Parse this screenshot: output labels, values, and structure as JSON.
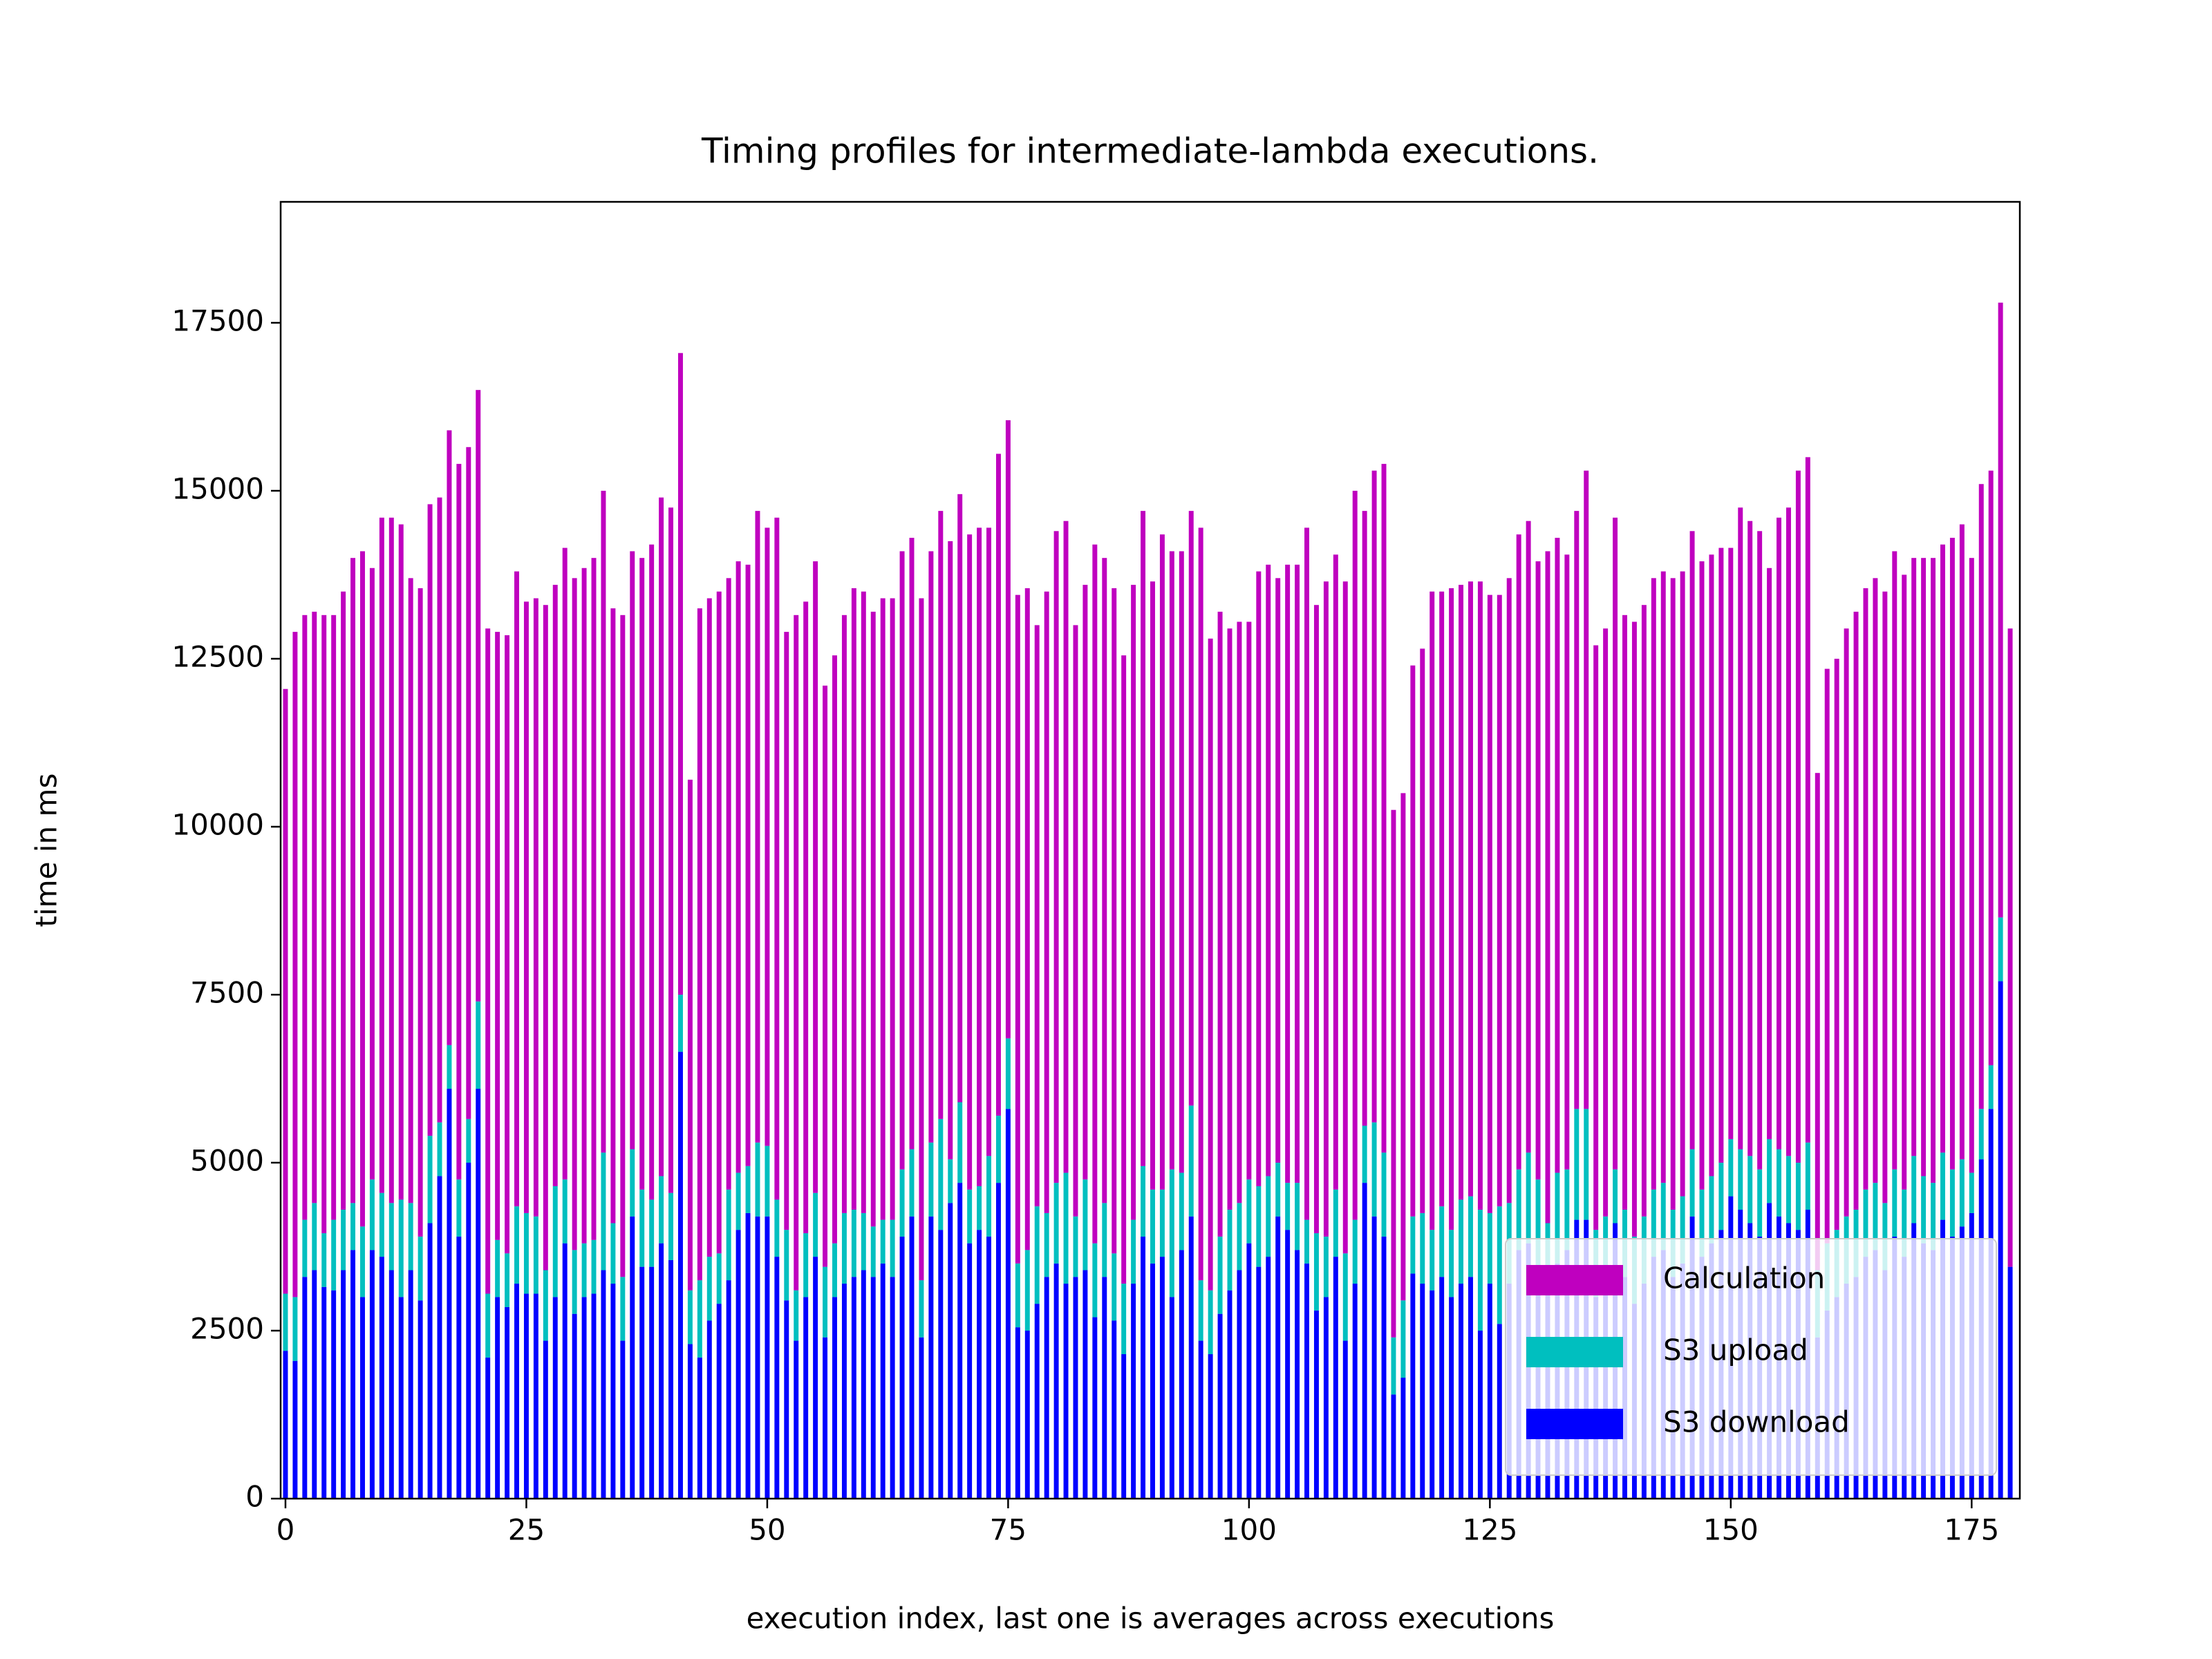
{
  "chart_data": {
    "type": "stacked_bar",
    "title": "Timing profiles for intermediate-lambda executions.",
    "x_label": "execution index, last one is averages across executions",
    "y_label": "time in ms",
    "xlim": [
      -0.5,
      180
    ],
    "ylim": [
      0,
      19300
    ],
    "xticks": [
      0,
      25,
      50,
      75,
      100,
      125,
      150,
      175
    ],
    "yticks": [
      0,
      2500,
      5000,
      7500,
      10000,
      12500,
      15000,
      17500
    ],
    "bar_width": 0.5,
    "grid": false,
    "legend_loc": "lower right",
    "legend_order": "reversed",
    "series": [
      {
        "name": "S3 download",
        "color": "#0000ff",
        "values": [
          2200,
          2050,
          3300,
          3400,
          3150,
          3100,
          3400,
          3700,
          3000,
          3700,
          3600,
          3400,
          3000,
          3400,
          2950,
          4100,
          4800,
          6100,
          3900,
          5000,
          6100,
          2100,
          3000,
          2850,
          3200,
          3050,
          3050,
          2350,
          3000,
          3800,
          2750,
          3000,
          3050,
          3400,
          3200,
          2350,
          4200,
          3450,
          3450,
          3800,
          3550,
          6650,
          2300,
          2100,
          2650,
          2900,
          3250,
          4000,
          4250,
          4200,
          4200,
          3600,
          2950,
          2350,
          3000,
          3600,
          2400,
          3000,
          3200,
          3300,
          3400,
          3300,
          3500,
          3300,
          3900,
          4200,
          2400,
          4200,
          4000,
          4400,
          4700,
          3800,
          4000,
          3900,
          4700,
          5800,
          2550,
          2500,
          2900,
          3300,
          3500,
          3200,
          3300,
          3400,
          2700,
          3300,
          2650,
          2150,
          3200,
          3900,
          3500,
          3600,
          3000,
          3700,
          4200,
          2350,
          2150,
          2750,
          3100,
          3400,
          3800,
          3450,
          3600,
          4200,
          4000,
          3700,
          3500,
          2800,
          3000,
          3600,
          2350,
          3200,
          4700,
          4200,
          3900,
          1550,
          1800,
          3350,
          3200,
          3100,
          3300,
          3000,
          3200,
          3300,
          2500,
          3200,
          2600,
          3200,
          3700,
          3800,
          3300,
          3100,
          3500,
          3700,
          4150,
          4150,
          3000,
          3200,
          4100,
          3300,
          2900,
          3200,
          3600,
          3700,
          3300,
          3500,
          4200,
          3600,
          3800,
          4000,
          4500,
          4300,
          4100,
          3900,
          4400,
          4200,
          4100,
          4000,
          4300,
          2400,
          2800,
          3000,
          3200,
          3300,
          3600,
          3700,
          3400,
          3900,
          3600,
          4100,
          3800,
          3700,
          4150,
          3900,
          4050,
          4250,
          5050,
          5800,
          7700,
          3450
        ]
      },
      {
        "name": "S3 upload",
        "color": "#00bfbf",
        "values": [
          850,
          950,
          850,
          1000,
          800,
          1050,
          900,
          700,
          1050,
          1050,
          950,
          1000,
          1450,
          1000,
          950,
          1300,
          800,
          650,
          850,
          650,
          1300,
          950,
          850,
          800,
          1150,
          1200,
          1150,
          1050,
          1650,
          950,
          950,
          800,
          800,
          1750,
          900,
          950,
          1000,
          1150,
          1000,
          1000,
          1000,
          850,
          800,
          1150,
          950,
          750,
          1350,
          850,
          700,
          1100,
          1050,
          850,
          1050,
          750,
          950,
          950,
          1050,
          800,
          1050,
          1000,
          850,
          750,
          650,
          850,
          1000,
          1000,
          850,
          1100,
          1650,
          650,
          1200,
          800,
          650,
          1200,
          1000,
          1050,
          950,
          1200,
          1450,
          950,
          1200,
          1650,
          900,
          1350,
          1100,
          1100,
          1000,
          1050,
          950,
          1050,
          1100,
          1000,
          1900,
          1150,
          1650,
          900,
          950,
          1150,
          1200,
          1000,
          950,
          1200,
          1200,
          800,
          700,
          1000,
          650,
          1150,
          900,
          1000,
          1300,
          950,
          850,
          1400,
          1250,
          850,
          1150,
          850,
          1050,
          900,
          1050,
          1000,
          1250,
          1200,
          1800,
          1050,
          1750,
          1200,
          1200,
          1350,
          1450,
          1000,
          1350,
          1200,
          1650,
          1650,
          1000,
          1000,
          800,
          1000,
          1000,
          1000,
          1000,
          1000,
          1000,
          1000,
          1000,
          1000,
          1000,
          1000,
          850,
          900,
          1000,
          1000,
          950,
          1000,
          1000,
          1000,
          1000,
          1000,
          1000,
          1000,
          1000,
          1000,
          1000,
          1000,
          1000,
          1000,
          1000,
          1000,
          1000,
          1000,
          1000,
          1000,
          1000,
          600,
          750,
          650,
          950
        ]
      },
      {
        "name": "Calculation",
        "color": "#bf00bf",
        "values": [
          9000,
          9900,
          9000,
          8800,
          9200,
          9000,
          9200,
          9600,
          10050,
          9100,
          10050,
          10200,
          10050,
          9300,
          9650,
          9400,
          9300,
          9150,
          10650,
          10000,
          9100,
          9900,
          9050,
          9200,
          9450,
          9100,
          9200,
          9900,
          8950,
          9400,
          10000,
          10050,
          10150,
          9850,
          9150,
          9850,
          8900,
          9400,
          9750,
          10100,
          10200,
          9550,
          7600,
          10000,
          9800,
          9850,
          9100,
          9100,
          8950,
          9400,
          9200,
          10150,
          8900,
          10050,
          9400,
          9400,
          8650,
          8750,
          8900,
          9250,
          9250,
          9150,
          9250,
          9250,
          9200,
          9100,
          10150,
          8800,
          9050,
          9200,
          9050,
          9750,
          9800,
          9350,
          9850,
          9200,
          9950,
          9850,
          8650,
          9250,
          9700,
          9700,
          8800,
          8850,
          10400,
          9600,
          9900,
          9350,
          9450,
          9750,
          9050,
          9750,
          9200,
          9250,
          8850,
          11200,
          9700,
          9300,
          8650,
          8650,
          8300,
          9150,
          9100,
          8700,
          9200,
          9200,
          10300,
          9350,
          9750,
          9450,
          10000,
          10850,
          9150,
          9700,
          10250,
          7850,
          7550,
          8200,
          8400,
          9500,
          9150,
          9550,
          9150,
          9150,
          9350,
          9200,
          9100,
          9300,
          9450,
          9400,
          9200,
          10000,
          9450,
          9150,
          8900,
          9500,
          8700,
          8750,
          9700,
          8850,
          9150,
          9100,
          9100,
          9100,
          9400,
          9300,
          9200,
          9350,
          9250,
          9150,
          8800,
          9550,
          9450,
          9500,
          8500,
          9400,
          9650,
          10300,
          10200,
          7400,
          8550,
          8500,
          8750,
          8900,
          8950,
          9000,
          9100,
          9200,
          9150,
          8900,
          9200,
          9300,
          9050,
          9400,
          9450,
          9150,
          9300,
          8850,
          9150,
          9500
        ]
      }
    ]
  }
}
